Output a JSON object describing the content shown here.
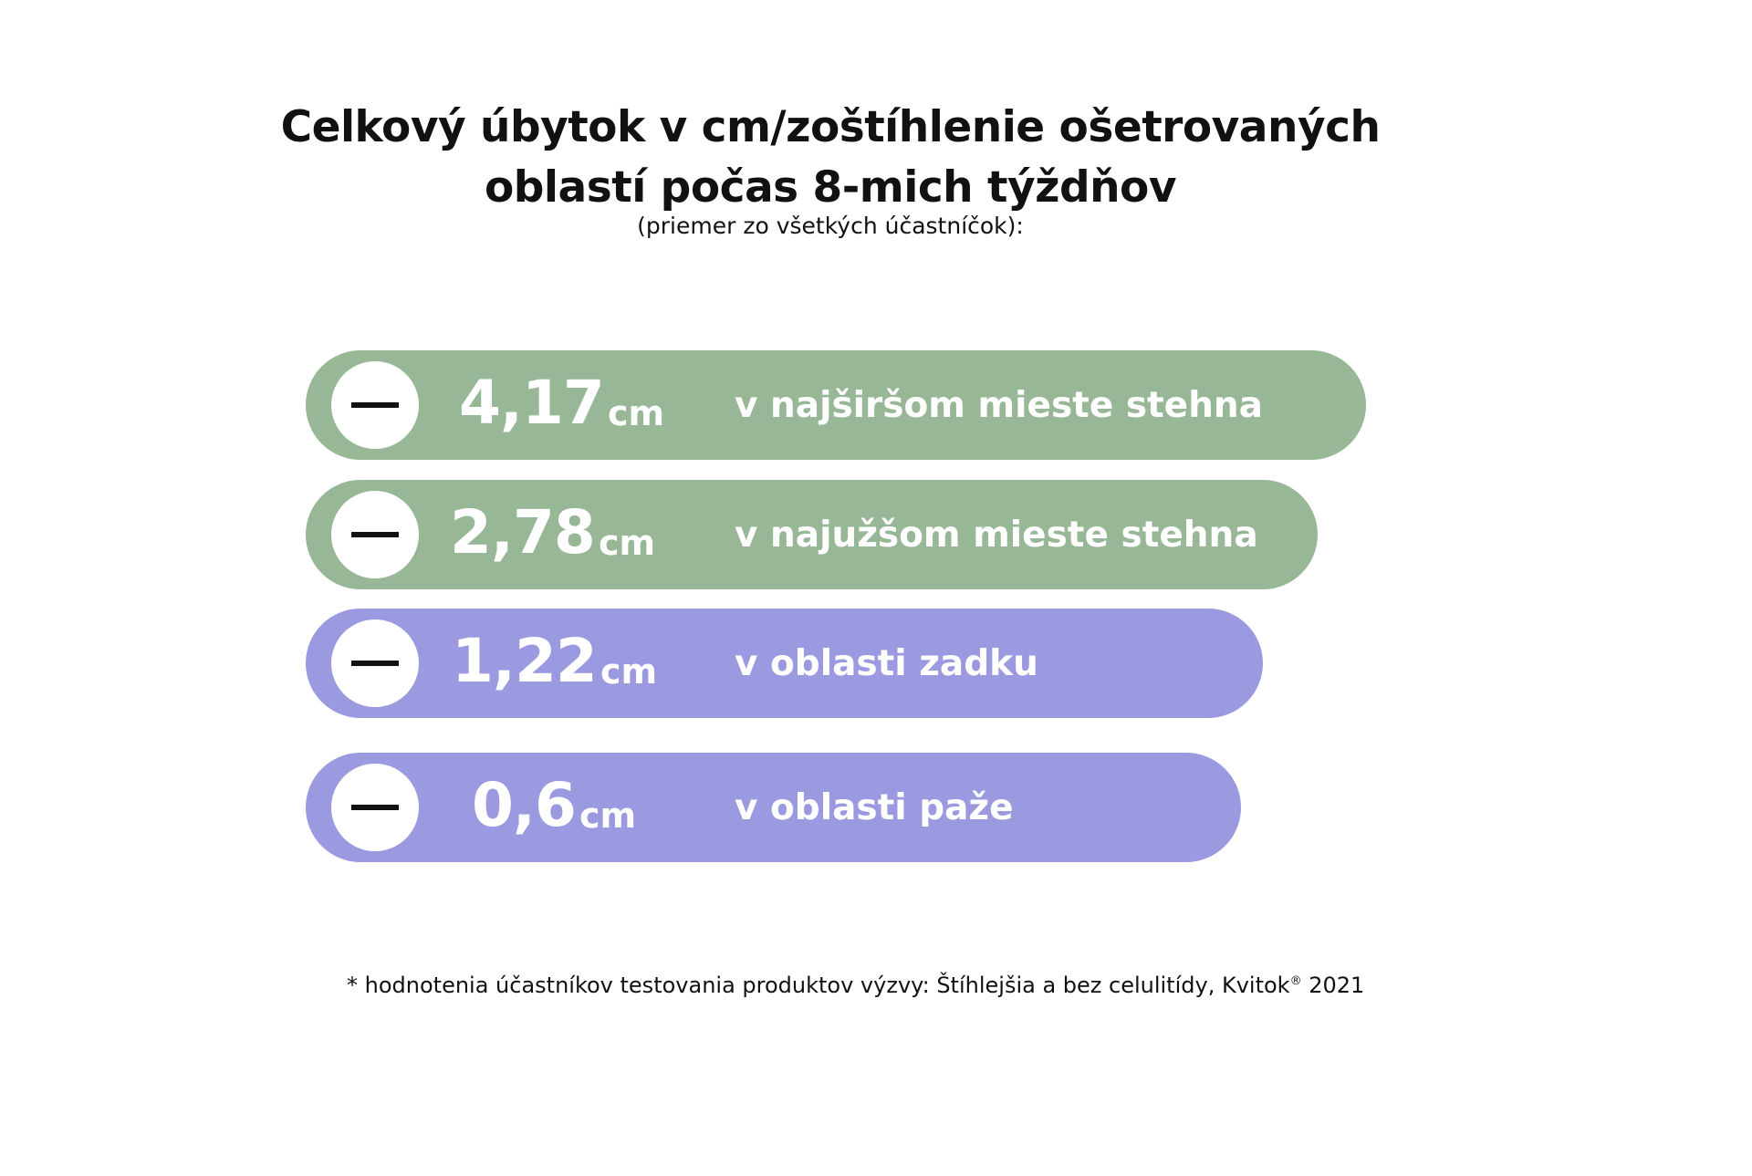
{
  "chart_data": {
    "type": "bar",
    "orientation": "horizontal",
    "title_line1": "Celkový úbytok v cm/zoštíhlenie ošetrovaných",
    "title_line2": "oblastí počas 8-mich týždňov",
    "subtitle": "(priemer zo všetkých účastníčok):",
    "unit": "cm",
    "categories": [
      "v najširšom mieste stehna",
      "v najužšom mieste stehna",
      "v oblasti zadku",
      "v oblasti paže"
    ],
    "values": [
      4.17,
      2.78,
      1.22,
      0.6
    ],
    "value_labels": [
      "4,17",
      "2,78",
      "1,22",
      "0,6"
    ],
    "colors": [
      "#98b797",
      "#98b797",
      "#9b9ae0",
      "#9b9ae0"
    ],
    "sign_icon": "minus-icon"
  },
  "footnote": {
    "text": "* hodnotenia účastníkov testovania produktov výzvy: Štíhlejšia a bez celulitídy,  Kvitok",
    "registered": "®",
    "year": " 2021"
  }
}
